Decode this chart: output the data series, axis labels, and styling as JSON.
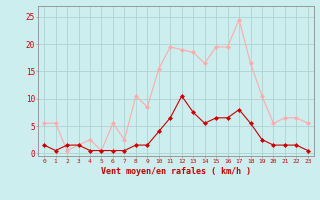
{
  "x": [
    0,
    1,
    2,
    3,
    4,
    5,
    6,
    7,
    8,
    9,
    10,
    11,
    12,
    13,
    14,
    15,
    16,
    17,
    18,
    19,
    20,
    21,
    22,
    23
  ],
  "avg_wind": [
    1.5,
    0.5,
    1.5,
    1.5,
    0.5,
    0.5,
    0.5,
    0.5,
    1.5,
    1.5,
    4.0,
    6.5,
    10.5,
    7.5,
    5.5,
    6.5,
    6.5,
    8.0,
    5.5,
    2.5,
    1.5,
    1.5,
    1.5,
    0.5
  ],
  "gust_wind": [
    5.5,
    5.5,
    0.5,
    1.5,
    2.5,
    0.5,
    5.5,
    2.5,
    10.5,
    8.5,
    15.5,
    19.5,
    19.0,
    18.5,
    16.5,
    19.5,
    19.5,
    24.5,
    16.5,
    10.5,
    5.5,
    6.5,
    6.5,
    5.5
  ],
  "avg_color": "#cc0000",
  "gust_color": "#ffaaaa",
  "bg_color": "#cceeee",
  "grid_color": "#aacccc",
  "xlabel": "Vent moyen/en rafales ( km/h )",
  "xlabel_color": "#cc0000",
  "ylabel_ticks": [
    0,
    5,
    10,
    15,
    20,
    25
  ],
  "ylim": [
    -0.5,
    27
  ],
  "xlim": [
    -0.5,
    23.5
  ]
}
